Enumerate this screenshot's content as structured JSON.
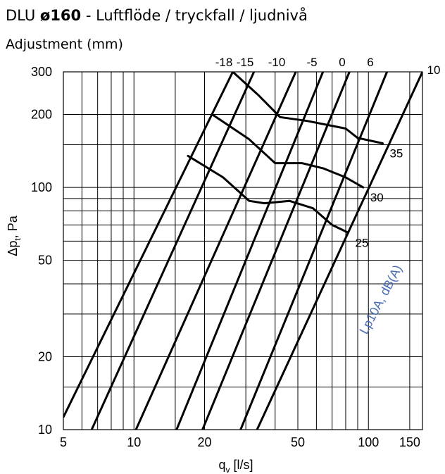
{
  "header": {
    "title_model": "DLU",
    "title_size": "ø160",
    "title_rest": " - Luftflöde / tryckfall / ljudnivå",
    "subtitle": "Adjustment (mm)"
  },
  "chart_data": {
    "type": "line",
    "x_scale": "log",
    "y_scale": "log",
    "xlim": [
      5,
      170
    ],
    "ylim": [
      10,
      300
    ],
    "xlabel_main": "q",
    "xlabel_sub": "v",
    "xlabel_unit": " [l/s]",
    "ylabel_main": "Δp",
    "ylabel_sub": "t",
    "ylabel_unit": ", Pa",
    "x_ticks": [
      {
        "value": 5,
        "label": "5"
      },
      {
        "value": 10,
        "label": "10"
      },
      {
        "value": 20,
        "label": "20"
      },
      {
        "value": 50,
        "label": "50"
      },
      {
        "value": 100,
        "label": "100"
      },
      {
        "value": 150,
        "label": "150"
      }
    ],
    "y_ticks": [
      {
        "value": 10,
        "label": "10"
      },
      {
        "value": 20,
        "label": "20"
      },
      {
        "value": 50,
        "label": "50"
      },
      {
        "value": 100,
        "label": "100"
      },
      {
        "value": 200,
        "label": "200"
      },
      {
        "value": 300,
        "label": "300"
      }
    ],
    "x_grid": [
      5,
      6,
      7,
      8,
      9,
      10,
      15,
      20,
      30,
      40,
      50,
      60,
      70,
      80,
      90,
      100,
      150
    ],
    "y_grid": [
      10,
      15,
      20,
      30,
      40,
      50,
      60,
      70,
      80,
      90,
      100,
      150,
      200,
      300
    ],
    "adjustment_lines": [
      {
        "label": "-18",
        "points": [
          [
            5.01,
            11.3
          ],
          [
            26.4,
            300
          ]
        ]
      },
      {
        "label": "-15",
        "points": [
          [
            6.6,
            10
          ],
          [
            32.5,
            300
          ]
        ]
      },
      {
        "label": "-10",
        "points": [
          [
            10.2,
            10
          ],
          [
            49,
            300
          ]
        ]
      },
      {
        "label": "-5",
        "points": [
          [
            15.2,
            10
          ],
          [
            64,
            300
          ]
        ]
      },
      {
        "label": "0",
        "points": [
          [
            19.6,
            10
          ],
          [
            83,
            300
          ]
        ]
      },
      {
        "label": "6",
        "points": [
          [
            28.5,
            10
          ],
          [
            120,
            300
          ]
        ]
      },
      {
        "label": "10",
        "points": [
          [
            33.5,
            10
          ],
          [
            170,
            300
          ]
        ]
      }
    ],
    "sound_curves": [
      {
        "label": "35",
        "points": [
          [
            26.4,
            300
          ],
          [
            34,
            240
          ],
          [
            42,
            195
          ],
          [
            55,
            188
          ],
          [
            80,
            175
          ],
          [
            90,
            160
          ],
          [
            115,
            152
          ]
        ]
      },
      {
        "label": "30",
        "points": [
          [
            21.6,
            200
          ],
          [
            31,
            158
          ],
          [
            40,
            126
          ],
          [
            52,
            126
          ],
          [
            64,
            120
          ],
          [
            80,
            110
          ],
          [
            95,
            100
          ]
        ]
      },
      {
        "label": "25",
        "points": [
          [
            17,
            135
          ],
          [
            24,
            110
          ],
          [
            31,
            88
          ],
          [
            36,
            86
          ],
          [
            46,
            88
          ],
          [
            58,
            82
          ],
          [
            70,
            70
          ],
          [
            82,
            65
          ]
        ]
      }
    ],
    "sound_label_text": "Lp10A, dB(A)",
    "colors": {
      "lines": "#000000",
      "grid": "#000000",
      "sound_label": "#4a6fb5"
    }
  }
}
